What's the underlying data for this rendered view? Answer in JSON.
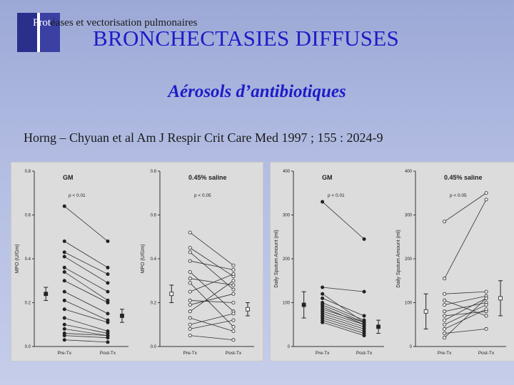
{
  "header": {
    "subject_part1": "Prot",
    "subject_part2": "éases et vectorisation pulmonaires",
    "title": "BRONCHECTASIES DIFFUSES",
    "subtitle": "Aérosols d’antibiotiques",
    "citation": "Horng – Chyuan et al Am J Respir Crit Care Med 1997 ; 155 : 2024-9"
  },
  "chart_data": [
    {
      "type": "line",
      "title": "GM",
      "annotation": "p < 0.01",
      "ylabel": "MPO (U/Gm)",
      "categories": [
        "Pre-Tx",
        "Post-Tx"
      ],
      "yticks": [
        "0.0",
        "0.2",
        "0.4",
        "0.6",
        "0.8"
      ],
      "ylim": [
        0,
        0.8
      ],
      "marker": "filled",
      "pairs": [
        [
          0.64,
          0.48
        ],
        [
          0.48,
          0.36
        ],
        [
          0.43,
          0.33
        ],
        [
          0.41,
          0.29
        ],
        [
          0.36,
          0.25
        ],
        [
          0.34,
          0.21
        ],
        [
          0.3,
          0.2
        ],
        [
          0.25,
          0.15
        ],
        [
          0.21,
          0.12
        ],
        [
          0.17,
          0.11
        ],
        [
          0.13,
          0.07
        ],
        [
          0.1,
          0.06
        ],
        [
          0.08,
          0.05
        ],
        [
          0.06,
          0.05
        ],
        [
          0.05,
          0.04
        ],
        [
          0.03,
          0.02
        ]
      ],
      "summary": {
        "pre": [
          0.24,
          0.27,
          0.21
        ],
        "post": [
          0.14,
          0.17,
          0.11
        ]
      }
    },
    {
      "type": "line",
      "title": "0.45%  saline",
      "annotation": "p < 0.05",
      "ylabel": "MPO (U/Gm)",
      "categories": [
        "Pre-Tx",
        "Post-Tx"
      ],
      "yticks": [
        "0.0",
        "0.2",
        "0.4",
        "0.6",
        "0.8"
      ],
      "ylim": [
        0,
        0.8
      ],
      "marker": "open",
      "pairs": [
        [
          0.52,
          0.37
        ],
        [
          0.45,
          0.32
        ],
        [
          0.43,
          0.26
        ],
        [
          0.39,
          0.35
        ],
        [
          0.34,
          0.16
        ],
        [
          0.31,
          0.28
        ],
        [
          0.29,
          0.09
        ],
        [
          0.25,
          0.33
        ],
        [
          0.21,
          0.2
        ],
        [
          0.19,
          0.24
        ],
        [
          0.16,
          0.3
        ],
        [
          0.13,
          0.07
        ],
        [
          0.1,
          0.15
        ],
        [
          0.08,
          0.12
        ],
        [
          0.05,
          0.03
        ]
      ],
      "summary": {
        "pre": [
          0.24,
          0.28,
          0.2
        ],
        "post": [
          0.17,
          0.2,
          0.14
        ]
      }
    },
    {
      "type": "line",
      "title": "GM",
      "annotation": "p < 0.01",
      "ylabel": "Daily Sputum Amount (ml)",
      "categories": [
        "Pre-Tx",
        "Post-Tx"
      ],
      "yticks": [
        "0",
        "100",
        "200",
        "300",
        "400"
      ],
      "ylim": [
        0,
        400
      ],
      "marker": "filled",
      "pairs": [
        [
          330,
          245
        ],
        [
          135,
          125
        ],
        [
          120,
          55
        ],
        [
          110,
          70
        ],
        [
          100,
          60
        ],
        [
          95,
          55
        ],
        [
          90,
          50
        ],
        [
          85,
          55
        ],
        [
          80,
          50
        ],
        [
          75,
          45
        ],
        [
          70,
          40
        ],
        [
          65,
          35
        ],
        [
          60,
          30
        ],
        [
          55,
          25
        ]
      ],
      "summary": {
        "pre": [
          95,
          125,
          65
        ],
        "post": [
          45,
          60,
          30
        ]
      }
    },
    {
      "type": "line",
      "title": "0.45%  saline",
      "annotation": "p < 0.05",
      "ylabel": "Daily Sputum Amount (ml)",
      "categories": [
        "Pre-Tx",
        "Post-Tx"
      ],
      "yticks": [
        "0",
        "100",
        "200",
        "300",
        "400"
      ],
      "ylim": [
        0,
        400
      ],
      "marker": "open",
      "pairs": [
        [
          285,
          350
        ],
        [
          155,
          335
        ],
        [
          120,
          125
        ],
        [
          105,
          70
        ],
        [
          95,
          115
        ],
        [
          80,
          100
        ],
        [
          70,
          80
        ],
        [
          60,
          110
        ],
        [
          50,
          95
        ],
        [
          40,
          85
        ],
        [
          30,
          40
        ],
        [
          20,
          110
        ]
      ],
      "summary": {
        "pre": [
          80,
          120,
          40
        ],
        "post": [
          110,
          150,
          70
        ]
      }
    }
  ]
}
